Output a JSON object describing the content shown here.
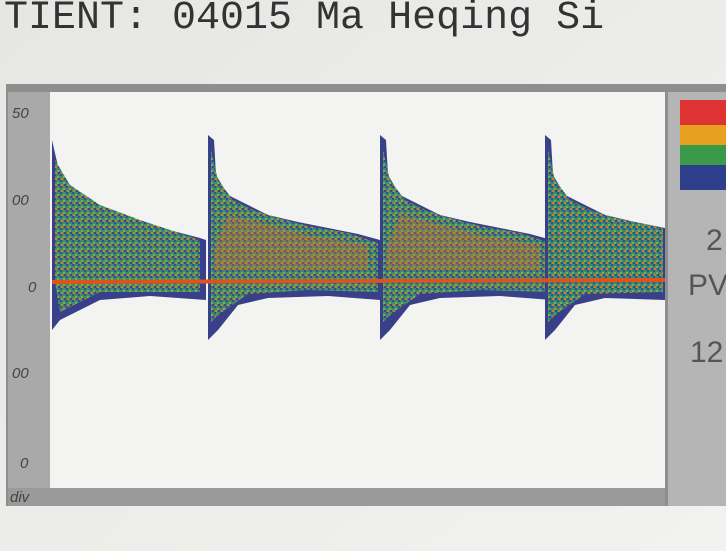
{
  "header": {
    "text": "TIENT: 04015 Ma Heqing Si"
  },
  "scale_labels": [
    "50",
    "00",
    "0",
    "00",
    "0"
  ],
  "scale_unit": "div",
  "side_panel": [
    "2",
    "PV",
    "12"
  ]
}
